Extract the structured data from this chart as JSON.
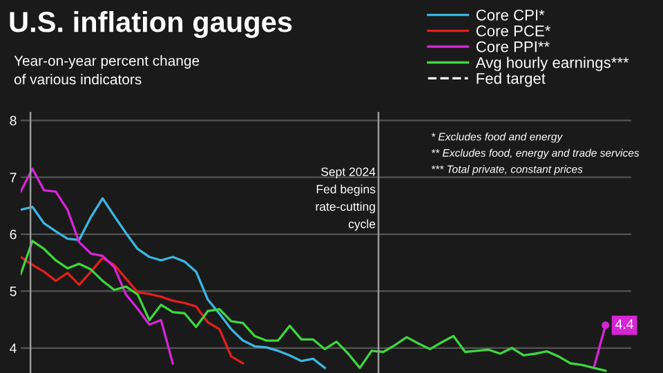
{
  "chart_data": {
    "type": "line",
    "title": "U.S. inflation gauges",
    "subtitle": "Year-on-year percent change\nof various indicators",
    "categories": [
      null,
      null,
      null,
      null,
      null,
      null,
      null,
      null,
      null,
      null,
      null,
      null,
      null,
      null,
      null,
      null,
      null,
      null,
      null,
      null,
      null,
      null,
      null,
      null,
      null,
      null,
      null,
      null,
      null,
      null,
      null,
      null,
      null,
      null,
      null,
      null,
      null,
      null,
      null,
      null,
      null,
      null,
      null,
      null,
      null,
      null,
      null,
      null,
      null,
      null,
      null
    ],
    "series": [
      {
        "name": "Core CPI*",
        "color": "#3bb6e0",
        "values": [
          6.43,
          6.48,
          6.19,
          6.05,
          5.92,
          5.9,
          6.3,
          6.63,
          6.32,
          6.02,
          5.74,
          5.6,
          5.54,
          5.6,
          5.52,
          5.34,
          4.85,
          4.6,
          4.33,
          4.13,
          4.03,
          4.01,
          3.95,
          3.87,
          3.77,
          3.81,
          3.65,
          null,
          null,
          null,
          null,
          null,
          null,
          null,
          null,
          null,
          null,
          null,
          null,
          null,
          null,
          null,
          null,
          null,
          null,
          null,
          null,
          null,
          null,
          null,
          null
        ]
      },
      {
        "name": "Core PCE*",
        "color": "#e0201b",
        "values": [
          5.6,
          5.46,
          5.34,
          5.18,
          5.32,
          5.11,
          5.34,
          5.58,
          5.46,
          5.22,
          4.98,
          4.95,
          4.9,
          4.83,
          4.79,
          4.73,
          4.45,
          4.33,
          3.85,
          3.73,
          null,
          null,
          null,
          null,
          null,
          null,
          null,
          null,
          null,
          null,
          null,
          null,
          null,
          null,
          null,
          null,
          null,
          null,
          null,
          null,
          null,
          null,
          null,
          null,
          null,
          null,
          null,
          null,
          null,
          null,
          null
        ]
      },
      {
        "name": "Core PPI**",
        "color": "#d426d4",
        "values": [
          6.75,
          7.15,
          6.77,
          6.75,
          6.43,
          5.86,
          5.66,
          5.62,
          5.42,
          4.94,
          4.69,
          4.41,
          4.49,
          3.73,
          null,
          null,
          null,
          null,
          null,
          null,
          null,
          null,
          null,
          null,
          null,
          null,
          null,
          null,
          null,
          null,
          null,
          null,
          null,
          null,
          null,
          null,
          null,
          null,
          null,
          null,
          null,
          null,
          null,
          null,
          null,
          null,
          null,
          null,
          null,
          3.65,
          4.4
        ],
        "value_labels": [
          null,
          null,
          null,
          null,
          null,
          null,
          null,
          null,
          null,
          null,
          null,
          null,
          null,
          null,
          null,
          null,
          null,
          null,
          null,
          null,
          null,
          null,
          null,
          null,
          null,
          null,
          null,
          null,
          null,
          null,
          null,
          null,
          null,
          null,
          null,
          null,
          null,
          null,
          null,
          null,
          null,
          null,
          null,
          null,
          null,
          null,
          null,
          null,
          null,
          null,
          "4.4"
        ]
      },
      {
        "name": "Avg hourly earnings***",
        "color": "#3ed63e",
        "values": [
          5.3,
          5.88,
          5.74,
          5.54,
          5.4,
          5.48,
          5.38,
          5.18,
          5.02,
          5.08,
          4.94,
          4.49,
          4.76,
          4.63,
          4.61,
          4.37,
          4.65,
          4.68,
          4.47,
          4.44,
          4.21,
          4.13,
          4.13,
          4.39,
          4.15,
          4.15,
          3.98,
          4.11,
          3.9,
          3.65,
          3.95,
          3.93,
          4.05,
          4.19,
          4.08,
          3.98,
          4.1,
          4.21,
          3.93,
          3.95,
          3.97,
          3.9,
          4.0,
          3.87,
          3.9,
          3.94,
          3.85,
          3.73,
          3.7,
          3.65,
          3.6
        ]
      },
      {
        "name": "Fed target",
        "color": "#ffffff",
        "line_style": "dashed",
        "values": [
          null,
          null,
          null,
          null,
          null,
          null,
          null,
          null,
          null,
          null,
          null,
          null,
          null,
          null,
          null,
          null,
          null,
          null,
          null,
          null,
          null,
          null,
          null,
          null,
          null,
          null,
          null,
          null,
          null,
          null,
          null,
          null,
          null,
          null,
          null,
          null,
          null,
          null,
          null,
          null,
          null,
          null,
          null,
          null,
          null,
          null,
          null,
          null,
          null,
          null,
          null
        ]
      }
    ],
    "annotations": [
      "* Excludes food and energy\n** Excludes food, energy and trade services\n*** Total private, constant prices",
      "Sept 2024\nFed begins\nrate-cutting\ncycle"
    ],
    "ylim": [
      3.56,
      8.15
    ],
    "yticks": [
      4,
      5,
      6,
      7,
      8
    ],
    "tick_labels": "y",
    "grid": "y",
    "legend": "top right"
  }
}
